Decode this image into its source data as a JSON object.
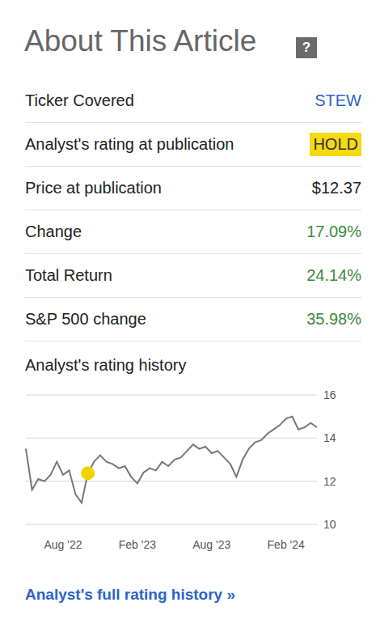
{
  "header": {
    "title": "About This Article",
    "help_icon": "?"
  },
  "table": {
    "rows": [
      [
        "Ticker Covered",
        "STEW"
      ],
      [
        "Analyst's rating at publication",
        "HOLD"
      ],
      [
        "Price at publication",
        "$12.37"
      ],
      [
        "Change",
        "17.09%"
      ],
      [
        "Total Return",
        "24.14%"
      ],
      [
        "S&P 500 change",
        "35.98%"
      ]
    ]
  },
  "chart_data": {
    "type": "line",
    "title": "Analyst's rating history",
    "categories": [
      null,
      null,
      null,
      null,
      null,
      null,
      "Aug '22",
      null,
      null,
      null,
      null,
      null,
      null,
      null,
      null,
      null,
      null,
      null,
      "Feb '23",
      null,
      null,
      null,
      null,
      null,
      null,
      null,
      null,
      null,
      null,
      null,
      "Aug '23",
      null,
      null,
      null,
      null,
      null,
      null,
      null,
      null,
      null,
      null,
      null,
      "Feb '24",
      null,
      null,
      null,
      null,
      null
    ],
    "values": [
      13.5,
      11.6,
      12.1,
      12.0,
      12.3,
      12.9,
      12.3,
      12.5,
      11.4,
      11.0,
      12.37,
      12.9,
      13.2,
      12.9,
      12.8,
      12.6,
      12.7,
      12.2,
      11.9,
      12.4,
      12.6,
      12.5,
      12.9,
      12.7,
      13.0,
      13.1,
      13.4,
      13.7,
      13.5,
      13.6,
      13.3,
      13.4,
      13.1,
      12.8,
      12.2,
      13.0,
      13.5,
      13.8,
      13.9,
      14.2,
      14.4,
      14.6,
      14.9,
      15.0,
      14.4,
      14.5,
      14.7,
      14.5
    ],
    "color": "#777777",
    "highlight_values": [
      null,
      null,
      null,
      null,
      null,
      null,
      null,
      null,
      null,
      null,
      12.37,
      null,
      null,
      null,
      null,
      null,
      null,
      null,
      null,
      null,
      null,
      null,
      null,
      null,
      null,
      null,
      null,
      null,
      null,
      null,
      null,
      null,
      null,
      null,
      null,
      null,
      null,
      null,
      null,
      null,
      null,
      null,
      null,
      null,
      null,
      null,
      null,
      null
    ],
    "highlight_color": "#f2d300",
    "ylim": [
      10,
      16
    ],
    "yticks": [
      10,
      12,
      14,
      16
    ],
    "grid": true
  },
  "link": "Analyst's full rating history »"
}
